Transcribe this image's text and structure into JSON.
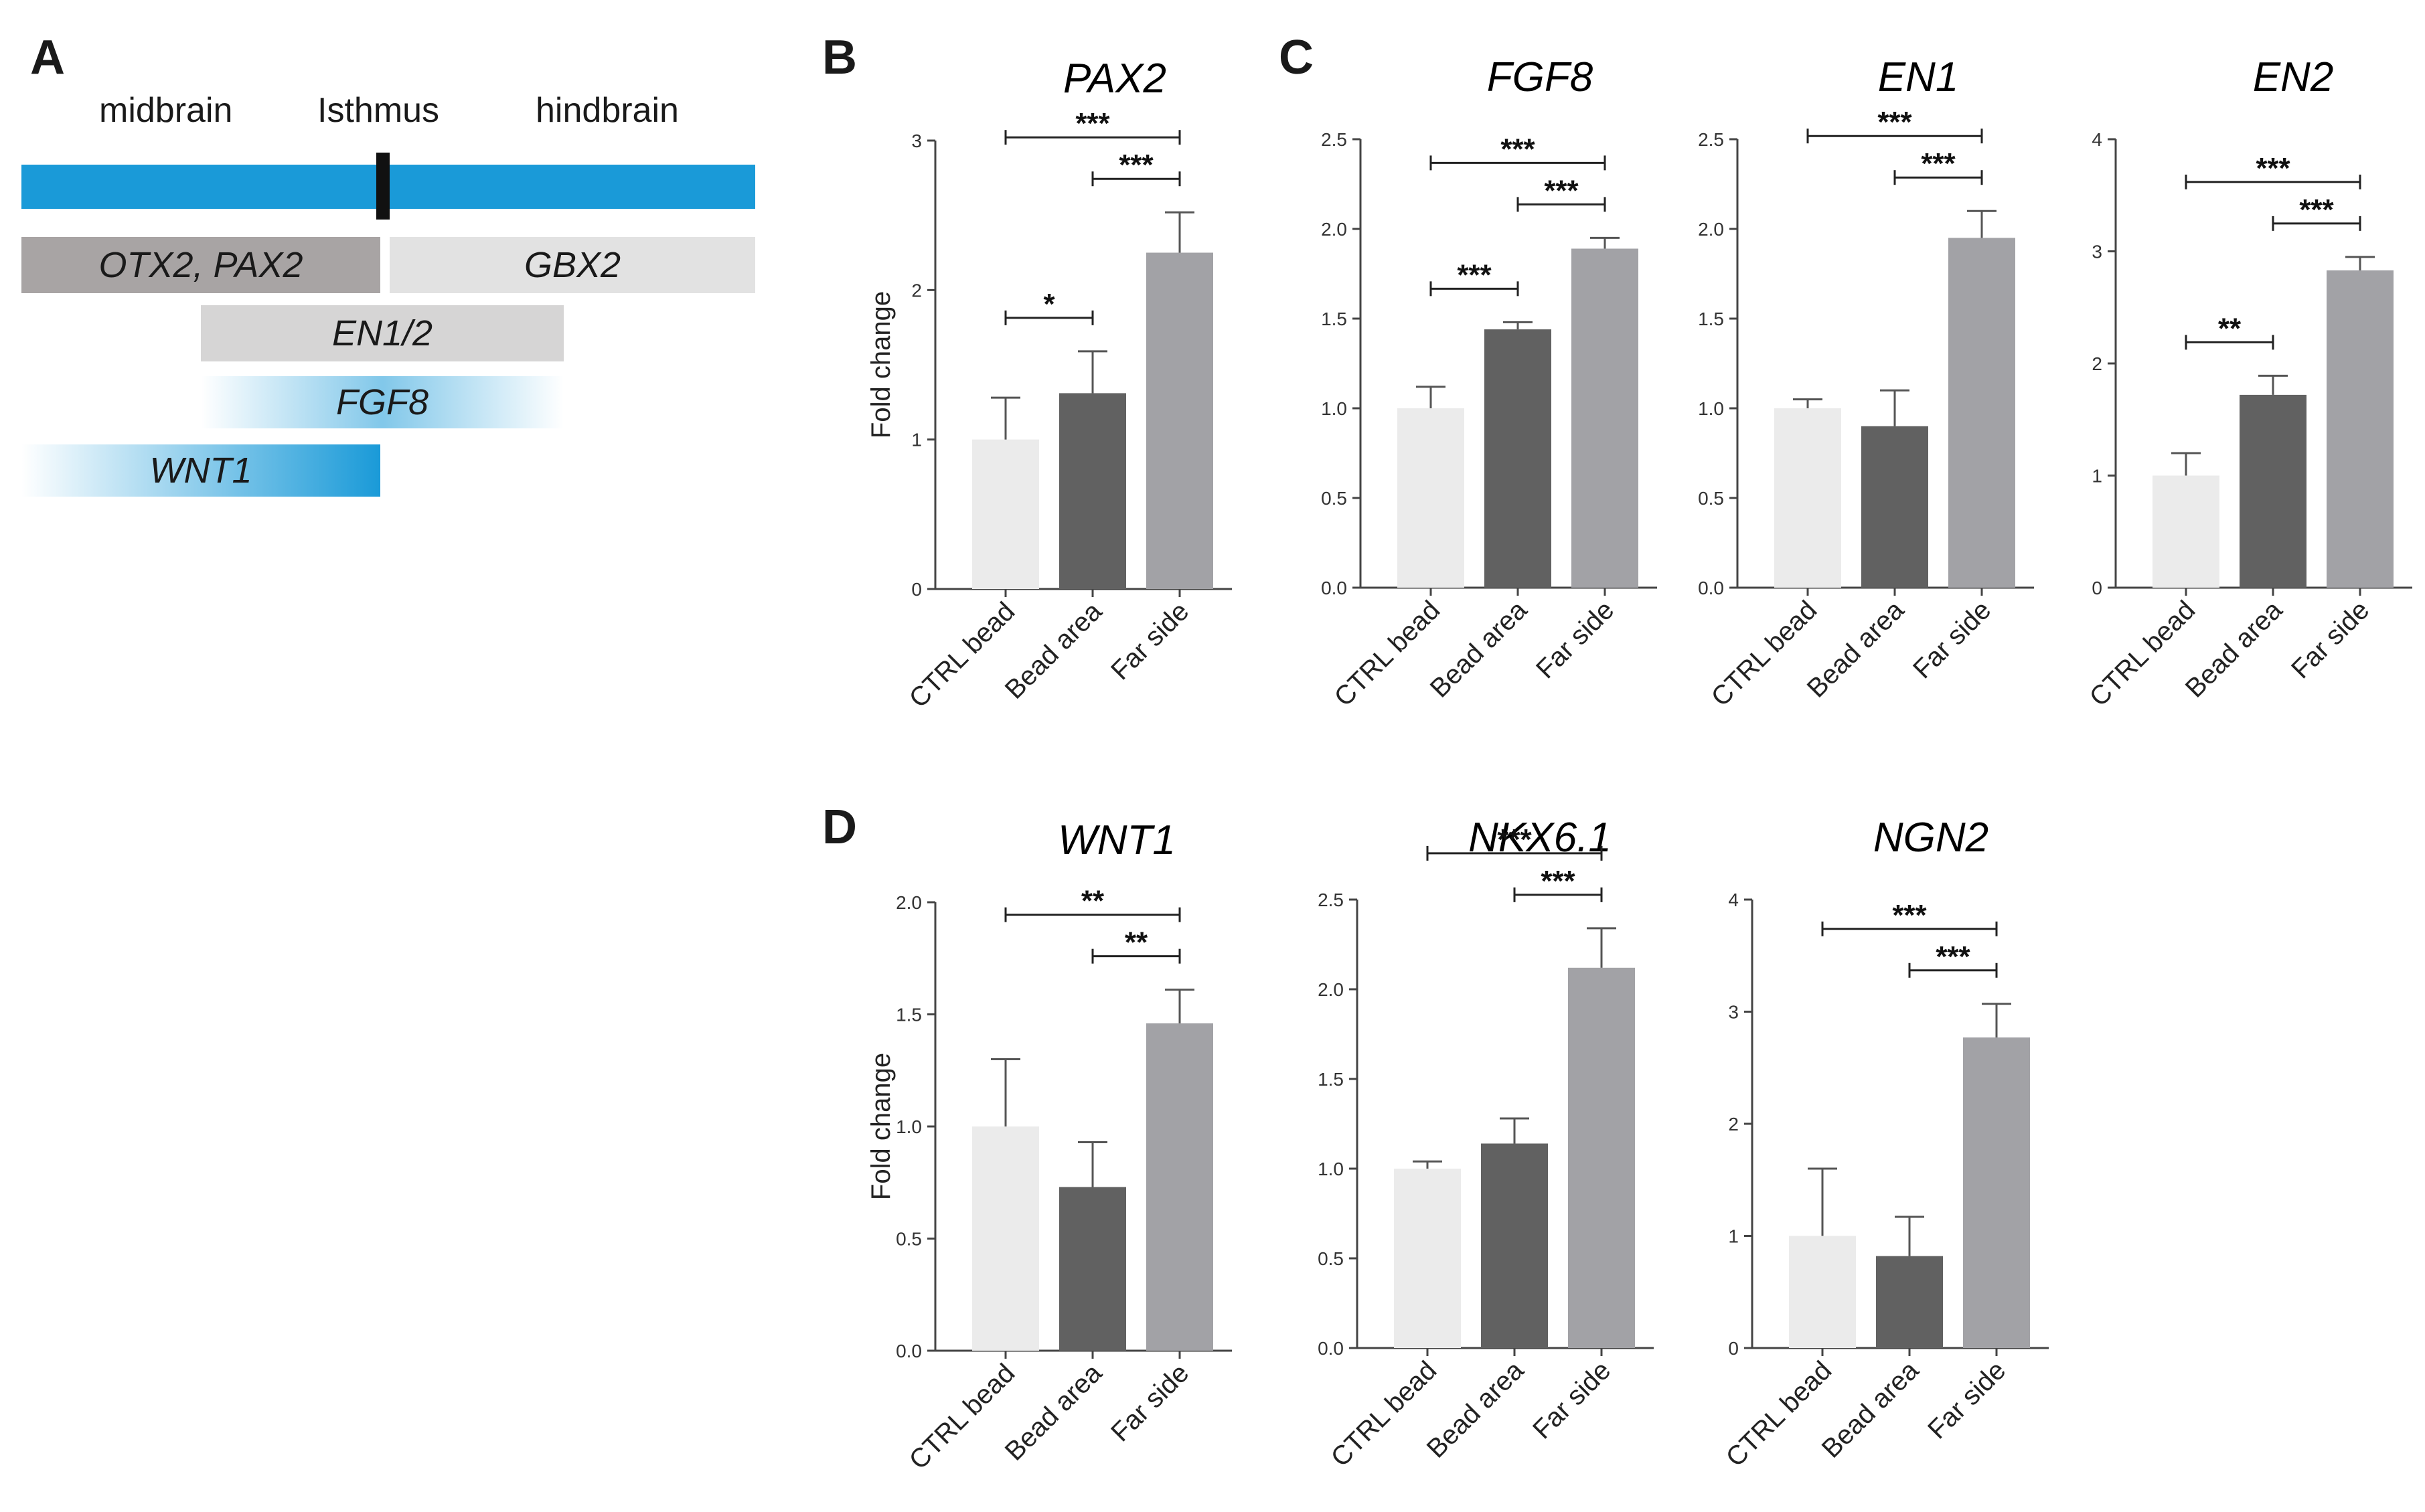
{
  "panel_a": {
    "letter": "A",
    "regions": {
      "midbrain": "midbrain",
      "isthmus": "Isthmus",
      "hindbrain": "hindbrain"
    },
    "bands": [
      {
        "key": "otx2",
        "label": "OTX2, PAX2"
      },
      {
        "key": "gbx2",
        "label": "GBX2"
      },
      {
        "key": "en12",
        "label": "EN1/2"
      },
      {
        "key": "fgf8",
        "label": "FGF8"
      },
      {
        "key": "wnt1",
        "label": "WNT1"
      }
    ],
    "colors": {
      "axis_blue": "#1a9ad8",
      "otx2": "#a8a4a4",
      "gbx2": "#e2e2e2",
      "en12": "#d6d5d5"
    }
  },
  "panel_letters": {
    "b": "B",
    "c": "C",
    "d": "D"
  },
  "chart_data": [
    {
      "id": "pax2",
      "type": "bar",
      "panel": "B",
      "title": "PAX2",
      "ylabel": "Fold change",
      "ylim": [
        0,
        3
      ],
      "ticks": [
        0,
        1,
        2,
        3
      ],
      "tick_labels": [
        "0",
        "1",
        "2",
        "3"
      ],
      "categories": [
        "CTRL bead",
        "Bead area",
        "Far side"
      ],
      "values": [
        1.0,
        1.31,
        2.25
      ],
      "errors": [
        0.28,
        0.28,
        0.27
      ],
      "significance": [
        {
          "from": 0,
          "to": 1,
          "label": "*"
        },
        {
          "from": 1,
          "to": 2,
          "label": "***"
        },
        {
          "from": 0,
          "to": 2,
          "label": "***"
        }
      ]
    },
    {
      "id": "fgf8",
      "type": "bar",
      "panel": "C",
      "title": "FGF8",
      "ylabel": "",
      "ylim": [
        0,
        2.5
      ],
      "ticks": [
        0,
        0.5,
        1,
        1.5,
        2,
        2.5
      ],
      "tick_labels": [
        "0.0",
        "0.5",
        "1.0",
        "1.5",
        "2.0",
        "2.5"
      ],
      "categories": [
        "CTRL bead",
        "Bead area",
        "Far side"
      ],
      "values": [
        1.0,
        1.44,
        1.89
      ],
      "errors": [
        0.12,
        0.04,
        0.06
      ],
      "significance": [
        {
          "from": 0,
          "to": 1,
          "label": "***"
        },
        {
          "from": 1,
          "to": 2,
          "label": "***"
        },
        {
          "from": 0,
          "to": 2,
          "label": "***"
        }
      ]
    },
    {
      "id": "en1",
      "type": "bar",
      "panel": "C",
      "title": "EN1",
      "ylabel": "",
      "ylim": [
        0,
        2.5
      ],
      "ticks": [
        0,
        0.5,
        1,
        1.5,
        2,
        2.5
      ],
      "tick_labels": [
        "0.0",
        "0.5",
        "1.0",
        "1.5",
        "2.0",
        "2.5"
      ],
      "categories": [
        "CTRL bead",
        "Bead area",
        "Far side"
      ],
      "values": [
        1.0,
        0.9,
        1.95
      ],
      "errors": [
        0.05,
        0.2,
        0.15
      ],
      "significance": [
        {
          "from": 1,
          "to": 2,
          "label": "***"
        },
        {
          "from": 0,
          "to": 2,
          "label": "***"
        }
      ]
    },
    {
      "id": "en2",
      "type": "bar",
      "panel": "C",
      "title": "EN2",
      "ylabel": "",
      "ylim": [
        0,
        4
      ],
      "ticks": [
        0,
        1,
        2,
        3,
        4
      ],
      "tick_labels": [
        "0",
        "1",
        "2",
        "3",
        "4"
      ],
      "categories": [
        "CTRL bead",
        "Bead area",
        "Far side"
      ],
      "values": [
        1.0,
        1.72,
        2.83
      ],
      "errors": [
        0.2,
        0.17,
        0.12
      ],
      "significance": [
        {
          "from": 0,
          "to": 1,
          "label": "**"
        },
        {
          "from": 1,
          "to": 2,
          "label": "***"
        },
        {
          "from": 0,
          "to": 2,
          "label": "***"
        }
      ]
    },
    {
      "id": "wnt1",
      "type": "bar",
      "panel": "D",
      "title": "WNT1",
      "ylabel": "Fold change",
      "ylim": [
        0,
        2
      ],
      "ticks": [
        0,
        0.5,
        1,
        1.5,
        2
      ],
      "tick_labels": [
        "0.0",
        "0.5",
        "1.0",
        "1.5",
        "2.0"
      ],
      "categories": [
        "CTRL bead",
        "Bead area",
        "Far side"
      ],
      "values": [
        1.0,
        0.73,
        1.46
      ],
      "errors": [
        0.3,
        0.2,
        0.15
      ],
      "significance": [
        {
          "from": 1,
          "to": 2,
          "label": "**"
        },
        {
          "from": 0,
          "to": 2,
          "label": "**"
        }
      ]
    },
    {
      "id": "nkx61",
      "type": "bar",
      "panel": "D",
      "title": "NKX6.1",
      "ylabel": "",
      "ylim": [
        0,
        2.5
      ],
      "ticks": [
        0,
        0.5,
        1,
        1.5,
        2,
        2.5
      ],
      "tick_labels": [
        "0.0",
        "0.5",
        "1.0",
        "1.5",
        "2.0",
        "2.5"
      ],
      "categories": [
        "CTRL bead",
        "Bead area",
        "Far side"
      ],
      "values": [
        1.0,
        1.14,
        2.12
      ],
      "errors": [
        0.04,
        0.14,
        0.22
      ],
      "significance": [
        {
          "from": 1,
          "to": 2,
          "label": "***"
        },
        {
          "from": 0,
          "to": 2,
          "label": "***"
        }
      ]
    },
    {
      "id": "ngn2",
      "type": "bar",
      "panel": "D",
      "title": "NGN2",
      "ylabel": "",
      "ylim": [
        0,
        4
      ],
      "ticks": [
        0,
        1,
        2,
        3,
        4
      ],
      "tick_labels": [
        "0",
        "1",
        "2",
        "3",
        "4"
      ],
      "categories": [
        "CTRL bead",
        "Bead area",
        "Far side"
      ],
      "values": [
        1.0,
        0.82,
        2.77
      ],
      "errors": [
        0.6,
        0.35,
        0.3
      ],
      "significance": [
        {
          "from": 1,
          "to": 2,
          "label": "***"
        },
        {
          "from": 0,
          "to": 2,
          "label": "***"
        }
      ]
    }
  ],
  "bar_colors": [
    "#ebebeb",
    "#616161",
    "#a2a2a6"
  ]
}
